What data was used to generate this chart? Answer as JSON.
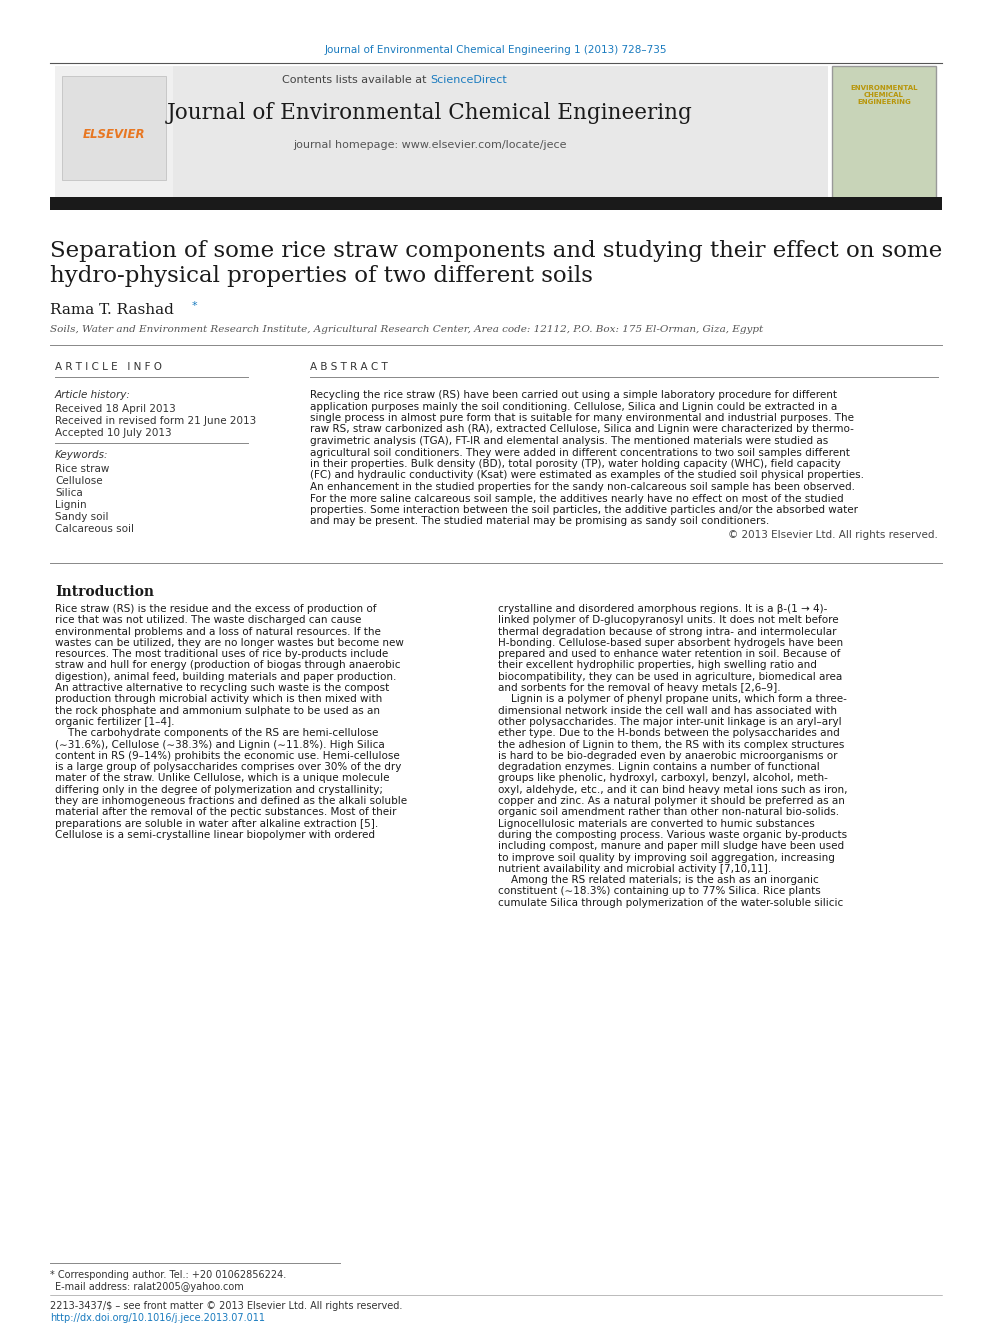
{
  "page_bg": "#ffffff",
  "top_journal_ref": "Journal of Environmental Chemical Engineering 1 (2013) 728–735",
  "top_journal_ref_color": "#1a7bbf",
  "header_bg": "#e8e8e8",
  "sciencedirect_color": "#1a7bbf",
  "journal_title": "Journal of Environmental Chemical Engineering",
  "journal_homepage": "journal homepage: www.elsevier.com/locate/jece",
  "black_bar_color": "#1a1a1a",
  "paper_title": "Separation of some rice straw components and studying their effect on some\nhydro-physical properties of two different soils",
  "author": "Rama T. Rashad",
  "affiliation": "Soils, Water and Environment Research Institute, Agricultural Research Center, Area code: 12112, P.O. Box: 175 El-Orman, Giza, Egypt",
  "article_info_header": "A R T I C L E   I N F O",
  "abstract_header": "A B S T R A C T",
  "article_history_label": "Article history:",
  "received1": "Received 18 April 2013",
  "received2": "Received in revised form 21 June 2013",
  "accepted": "Accepted 10 July 2013",
  "keywords_label": "Keywords:",
  "keywords": [
    "Rice straw",
    "Cellulose",
    "Silica",
    "Lignin",
    "Sandy soil",
    "Calcareous soil"
  ],
  "abstract_lines": [
    "Recycling the rice straw (RS) have been carried out using a simple laboratory procedure for different",
    "application purposes mainly the soil conditioning. Cellulose, Silica and Lignin could be extracted in a",
    "single process in almost pure form that is suitable for many environmental and industrial purposes. The",
    "raw RS, straw carbonized ash (RA), extracted Cellulose, Silica and Lignin were characterized by thermo-",
    "gravimetric analysis (TGA), FT-IR and elemental analysis. The mentioned materials were studied as",
    "agricultural soil conditioners. They were added in different concentrations to two soil samples different",
    "in their properties. Bulk density (BD), total porosity (TP), water holding capacity (WHC), field capacity",
    "(FC) and hydraulic conductivity (Ksat) were estimated as examples of the studied soil physical properties.",
    "An enhancement in the studied properties for the sandy non-calcareous soil sample has been observed.",
    "For the more saline calcareous soil sample, the additives nearly have no effect on most of the studied",
    "properties. Some interaction between the soil particles, the additive particles and/or the absorbed water",
    "and may be present. The studied material may be promising as sandy soil conditioners."
  ],
  "copyright_line": "© 2013 Elsevier Ltd. All rights reserved.",
  "intro_header": "Introduction",
  "left_intro_lines": [
    "Rice straw (RS) is the residue and the excess of production of",
    "rice that was not utilized. The waste discharged can cause",
    "environmental problems and a loss of natural resources. If the",
    "wastes can be utilized, they are no longer wastes but become new",
    "resources. The most traditional uses of rice by-products include",
    "straw and hull for energy (production of biogas through anaerobic",
    "digestion), animal feed, building materials and paper production.",
    "An attractive alternative to recycling such waste is the compost",
    "production through microbial activity which is then mixed with",
    "the rock phosphate and ammonium sulphate to be used as an",
    "organic fertilizer [1–4].",
    "    The carbohydrate components of the RS are hemi-cellulose",
    "(∼31.6%), Cellulose (∼38.3%) and Lignin (∼11.8%). High Silica",
    "content in RS (9–14%) prohibits the economic use. Hemi-cellulose",
    "is a large group of polysaccharides comprises over 30% of the dry",
    "mater of the straw. Unlike Cellulose, which is a unique molecule",
    "differing only in the degree of polymerization and crystallinity;",
    "they are inhomogeneous fractions and defined as the alkali soluble",
    "material after the removal of the pectic substances. Most of their",
    "preparations are soluble in water after alkaline extraction [5].",
    "Cellulose is a semi-crystalline linear biopolymer with ordered"
  ],
  "right_intro_lines": [
    "crystalline and disordered amorphous regions. It is a β-(1 → 4)-",
    "linked polymer of D-glucopyranosyl units. It does not melt before",
    "thermal degradation because of strong intra- and intermolecular",
    "H-bonding. Cellulose-based super absorbent hydrogels have been",
    "prepared and used to enhance water retention in soil. Because of",
    "their excellent hydrophilic properties, high swelling ratio and",
    "biocompatibility, they can be used in agriculture, biomedical area",
    "and sorbents for the removal of heavy metals [2,6–9].",
    "    Lignin is a polymer of phenyl propane units, which form a three-",
    "dimensional network inside the cell wall and has associated with",
    "other polysaccharides. The major inter-unit linkage is an aryl–aryl",
    "ether type. Due to the H-bonds between the polysaccharides and",
    "the adhesion of Lignin to them, the RS with its complex structures",
    "is hard to be bio-degraded even by anaerobic microorganisms or",
    "degradation enzymes. Lignin contains a number of functional",
    "groups like phenolic, hydroxyl, carboxyl, benzyl, alcohol, meth-",
    "oxyl, aldehyde, etc., and it can bind heavy metal ions such as iron,",
    "copper and zinc. As a natural polymer it should be preferred as an",
    "organic soil amendment rather than other non-natural bio-solids.",
    "Lignocellulosic materials are converted to humic substances",
    "during the composting process. Various waste organic by-products",
    "including compost, manure and paper mill sludge have been used",
    "to improve soil quality by improving soil aggregation, increasing",
    "nutrient availability and microbial activity [7,10,11].",
    "    Among the RS related materials; is the ash as an inorganic",
    "constituent (∼18.3%) containing up to 77% Silica. Rice plants",
    "cumulate Silica through polymerization of the water-soluble silicic"
  ],
  "footnote_star_line": "* Corresponding author. Tel.: +20 01062856224.",
  "footnote_email_line": "E-mail address: ralat2005@yahoo.com",
  "footnote_issn": "2213-3437/$ – see front matter © 2013 Elsevier Ltd. All rights reserved.",
  "footnote_doi": "http://dx.doi.org/10.1016/j.jece.2013.07.011"
}
